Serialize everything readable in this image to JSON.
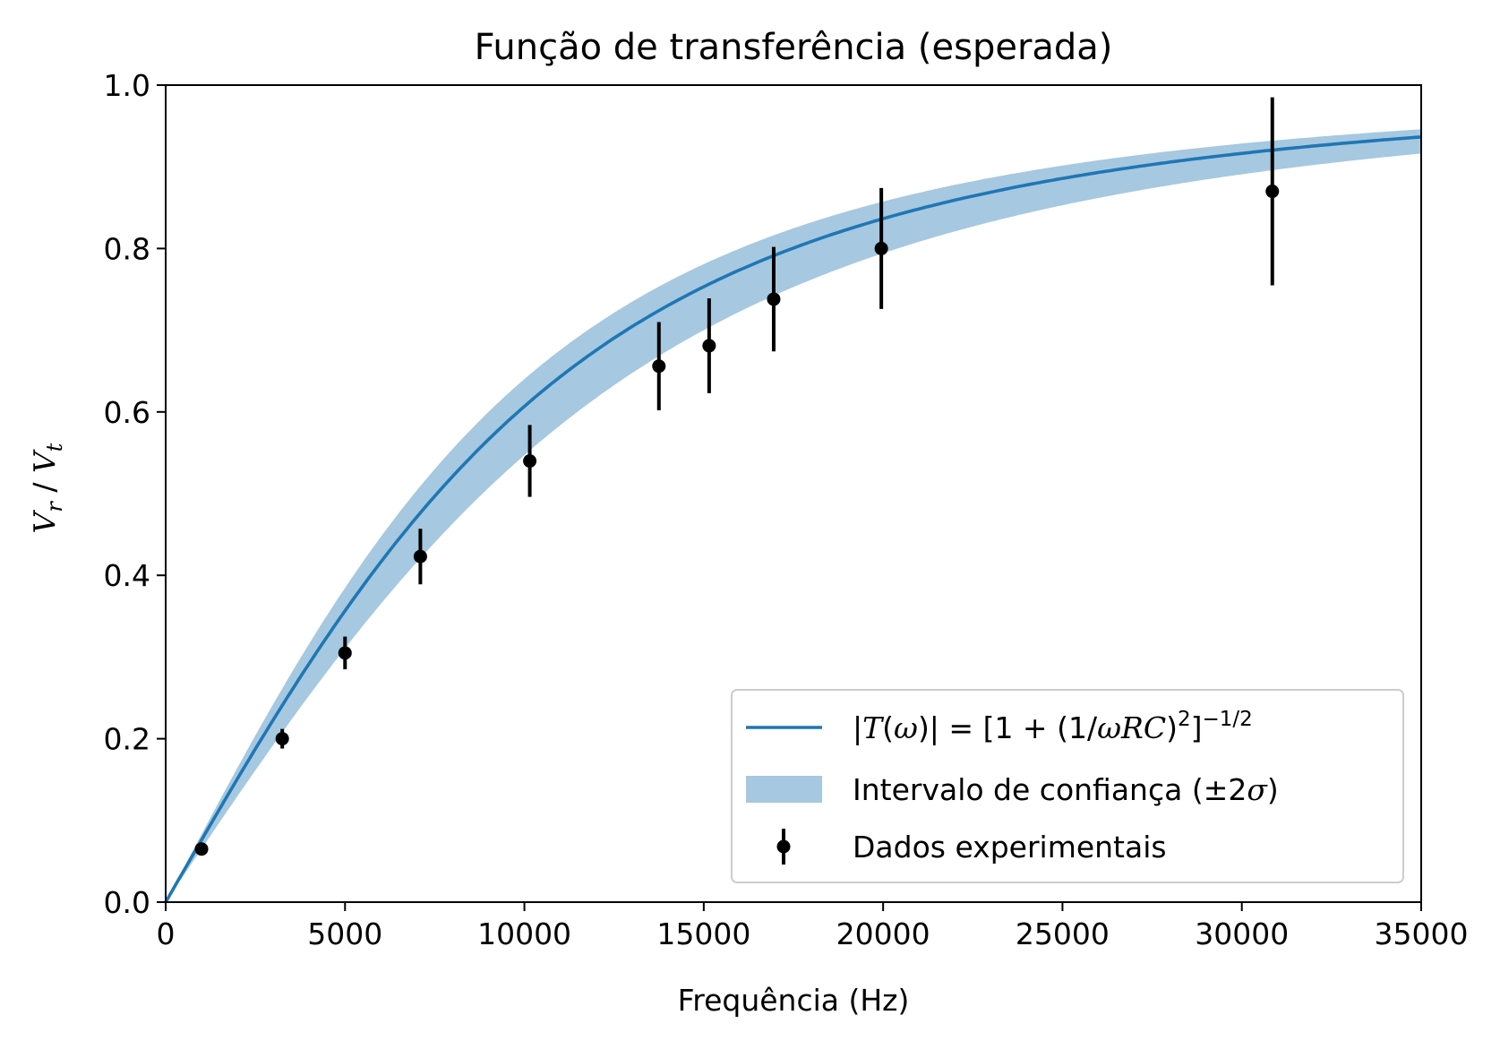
{
  "chart_data": {
    "type": "scatter",
    "title": "Função de transferência (esperada)",
    "xlabel": "Frequência (Hz)",
    "ylabel": {
      "num": "V",
      "num_sub": "r",
      "sep": " / ",
      "den": "V",
      "den_sub": "t"
    },
    "xlim": [
      0,
      35000
    ],
    "ylim": [
      0,
      1.0
    ],
    "x_ticks": [
      0,
      5000,
      10000,
      15000,
      20000,
      25000,
      30000,
      35000
    ],
    "x_tick_labels": [
      "0",
      "5000",
      "10000",
      "15000",
      "20000",
      "25000",
      "30000",
      "35000"
    ],
    "y_ticks": [
      0,
      0.2,
      0.4,
      0.6,
      0.8,
      1.0
    ],
    "y_tick_labels": [
      "0.0",
      "0.2",
      "0.4",
      "0.6",
      "0.8",
      "1.0"
    ],
    "grid": false,
    "legend_position": "lower-right",
    "model": {
      "type": "line",
      "fc_hz": 13100,
      "band_fc_low_hz": 12000,
      "band_fc_high_hz": 15300,
      "color": "#1f77b4",
      "band_color": "#a6c8e0"
    },
    "series": [
      {
        "name": "Dados experimentais",
        "type": "errorbar",
        "color": "#000000",
        "x": [
          1000,
          3250,
          5000,
          7100,
          10150,
          13750,
          15150,
          16950,
          19950,
          30850
        ],
        "y": [
          0.065,
          0.2,
          0.305,
          0.423,
          0.54,
          0.656,
          0.681,
          0.738,
          0.8,
          0.87
        ],
        "yerr": [
          0.005,
          0.012,
          0.02,
          0.034,
          0.044,
          0.054,
          0.058,
          0.064,
          0.074,
          0.115
        ]
      }
    ],
    "legend": {
      "line": {
        "T": "T",
        "omega": "ω",
        "eq": " = [1 + (1/",
        "wrc": "ωRC",
        "close": ")",
        "sq": "2",
        "bracket": "]",
        "exp": "−1/2"
      },
      "band": "Intervalo de confiança (±2",
      "band_sigma": "σ",
      "band_close": ")",
      "points": "Dados experimentais"
    }
  }
}
